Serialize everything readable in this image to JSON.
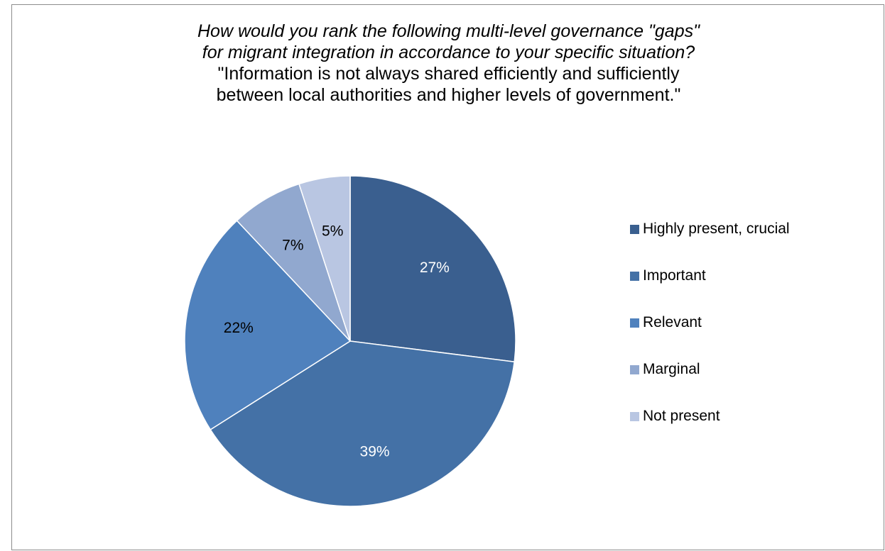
{
  "chart_data": {
    "type": "pie",
    "title_lines": [
      "How would you rank the following multi-level governance \"gaps\"",
      "for migrant integration in accordance to your specific situation?"
    ],
    "subtitle_lines": [
      "\"Information is not always shared efficiently and sufficiently",
      "between local authorities and higher levels of government.\""
    ],
    "categories": [
      "Highly present, crucial",
      "Important",
      "Relevant",
      "Marginal",
      "Not present"
    ],
    "values": [
      27,
      39,
      22,
      7,
      5
    ],
    "labels": [
      "27%",
      "39%",
      "22%",
      "7%",
      "5%"
    ],
    "colors": [
      "#3a5f8f",
      "#4471a6",
      "#4f81bd",
      "#91a8cf",
      "#b9c6e2"
    ],
    "label_colors": [
      "#ffffff",
      "#ffffff",
      "#000000",
      "#000000",
      "#000000"
    ],
    "legend_position": "right"
  }
}
